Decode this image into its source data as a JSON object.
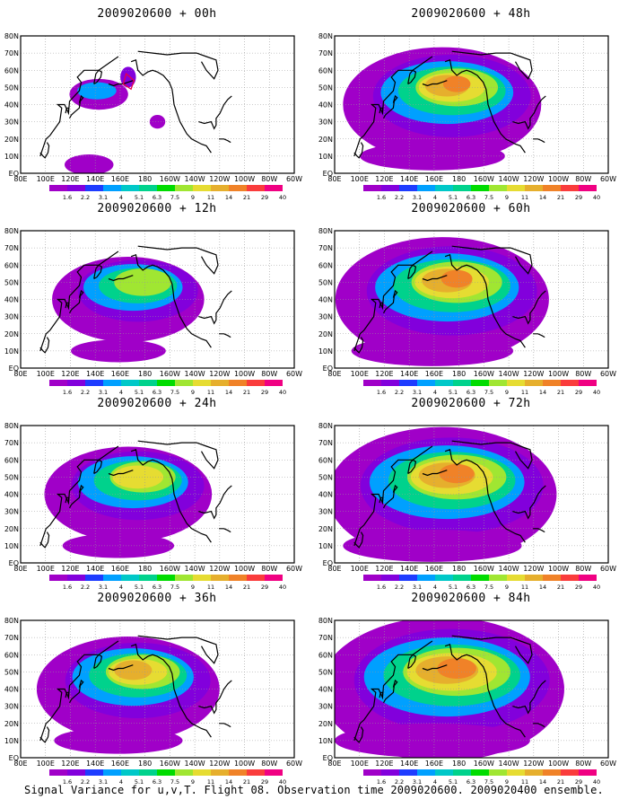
{
  "panels": [
    {
      "title": "2009020600 + 00h",
      "lead": 0
    },
    {
      "title": "2009020600 + 48h",
      "lead": 48
    },
    {
      "title": "2009020600 + 12h",
      "lead": 12
    },
    {
      "title": "2009020600 + 60h",
      "lead": 60
    },
    {
      "title": "2009020600 + 24h",
      "lead": 24
    },
    {
      "title": "2009020600 + 72h",
      "lead": 72
    },
    {
      "title": "2009020600 + 36h",
      "lead": 36
    },
    {
      "title": "2009020600 + 84h",
      "lead": 84
    }
  ],
  "axes": {
    "lon_ticks": [
      "80E",
      "100E",
      "120E",
      "140E",
      "160E",
      "180",
      "160W",
      "140W",
      "120W",
      "100W",
      "80W",
      "60W"
    ],
    "lat_ticks": [
      "EQ",
      "10N",
      "20N",
      "30N",
      "40N",
      "50N",
      "60N",
      "70N",
      "80N"
    ]
  },
  "colorbar": {
    "labels": [
      "1.6",
      "2.2",
      "3.1",
      "4",
      "5.1",
      "6.3",
      "7.5",
      "9",
      "11",
      "14",
      "21",
      "29",
      "40"
    ],
    "colors": [
      "#a000c8",
      "#8200dc",
      "#1e3cff",
      "#00a0ff",
      "#00c8c8",
      "#00d28c",
      "#00dc00",
      "#a0e632",
      "#e6dc32",
      "#e6af2d",
      "#f08228",
      "#fa3c3c",
      "#f00082"
    ]
  },
  "footer": "Signal Variance for u,v,T. Flight 08. Observation time 2009020600. 2009020400 ensemble."
}
